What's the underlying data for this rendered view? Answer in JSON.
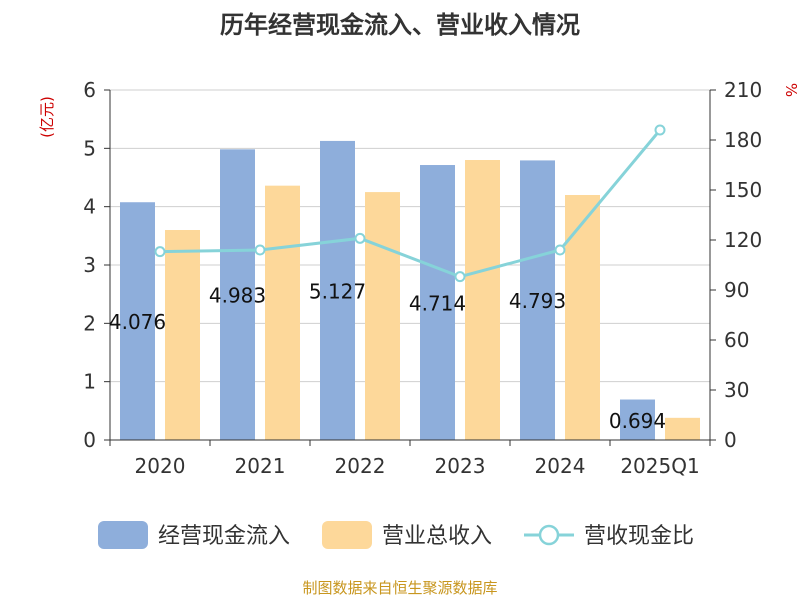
{
  "chart_data": {
    "type": "bar",
    "title": "历年经营现金流入、营业收入情况",
    "categories": [
      "2020",
      "2021",
      "2022",
      "2023",
      "2024",
      "2025Q1"
    ],
    "left_axis": {
      "unit_label": "(亿元)",
      "ylim": [
        0,
        6
      ],
      "ticks": [
        "0",
        "1",
        "2",
        "3",
        "4",
        "5",
        "6"
      ]
    },
    "right_axis": {
      "unit_label": "%",
      "ylim": [
        0,
        210
      ],
      "ticks": [
        "0",
        "30",
        "60",
        "90",
        "120",
        "150",
        "180",
        "210"
      ]
    },
    "grid": true,
    "legend_position": "bottom",
    "series": [
      {
        "name": "经营现金流入",
        "kind": "bar",
        "axis": "left",
        "color": "#8eaedb",
        "values": [
          4.076,
          4.983,
          5.127,
          4.714,
          4.793,
          0.694
        ],
        "data_labels": [
          "4.076",
          "4.983",
          "5.127",
          "4.714",
          "4.793",
          "0.694"
        ]
      },
      {
        "name": "营业总收入",
        "kind": "bar",
        "axis": "left",
        "color": "#fdd89a",
        "values": [
          3.6,
          4.36,
          4.25,
          4.8,
          4.2,
          0.38
        ]
      },
      {
        "name": "营收现金比",
        "kind": "line",
        "axis": "right",
        "color": "#86d3d9",
        "values": [
          113,
          114,
          121,
          98,
          114,
          186
        ]
      }
    ],
    "source": "制图数据来自恒生聚源数据库"
  }
}
